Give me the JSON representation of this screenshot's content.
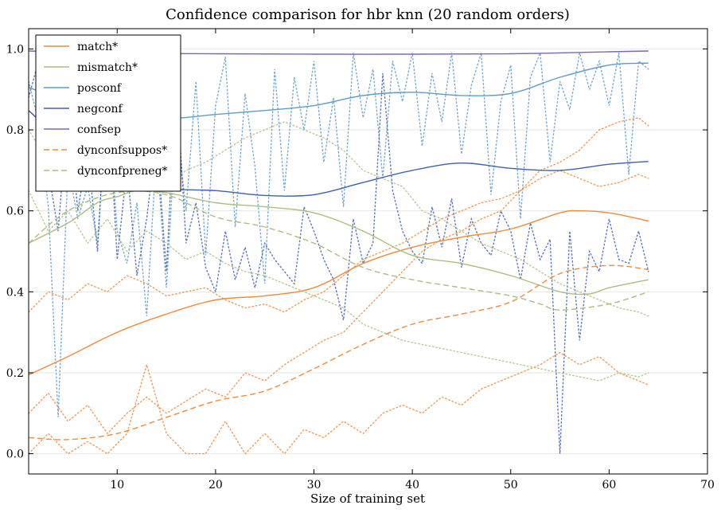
{
  "chart_data": {
    "type": "line",
    "title": "Confidence comparison for hbr knn (20 random orders)",
    "xlabel": "Size of training set",
    "ylabel": "",
    "xlim": [
      1,
      70
    ],
    "ylim": [
      -0.05,
      1.05
    ],
    "xticks": [
      10,
      20,
      30,
      40,
      50,
      60,
      70
    ],
    "yticks": [
      0.0,
      0.2,
      0.4,
      0.6,
      0.8,
      1.0
    ],
    "xtick_labels": [
      "10",
      "20",
      "30",
      "40",
      "50",
      "60",
      "70"
    ],
    "ytick_labels": [
      "0.0",
      "0.2",
      "0.4",
      "0.6",
      "0.8",
      "1.0"
    ],
    "grid": "horizontal",
    "legend_position": "top-left",
    "series": [
      {
        "name": "match*",
        "color": "#f08a3c",
        "style": "solid",
        "x": [
          1,
          5,
          10,
          15,
          20,
          25,
          30,
          35,
          40,
          45,
          50,
          55,
          57,
          60,
          64
        ],
        "values": [
          0.195,
          0.24,
          0.3,
          0.345,
          0.38,
          0.39,
          0.41,
          0.47,
          0.51,
          0.535,
          0.555,
          0.595,
          0.6,
          0.595,
          0.575
        ]
      },
      {
        "name": "mismatch*",
        "color": "#a9bf7f",
        "style": "solid",
        "x": [
          1,
          5,
          8,
          10,
          12,
          15,
          20,
          25,
          30,
          35,
          40,
          45,
          50,
          55,
          58,
          60,
          64
        ],
        "values": [
          0.52,
          0.57,
          0.62,
          0.635,
          0.65,
          0.645,
          0.62,
          0.61,
          0.595,
          0.55,
          0.49,
          0.47,
          0.44,
          0.4,
          0.395,
          0.41,
          0.43
        ]
      },
      {
        "name": "posconf",
        "color": "#5f9bc7",
        "style": "solid",
        "x": [
          1,
          5,
          10,
          15,
          20,
          25,
          30,
          35,
          40,
          45,
          50,
          55,
          60,
          64
        ],
        "values": [
          0.905,
          0.87,
          0.84,
          0.828,
          0.838,
          0.848,
          0.86,
          0.885,
          0.893,
          0.885,
          0.89,
          0.93,
          0.96,
          0.965
        ]
      },
      {
        "name": "negconf",
        "color": "#3f5fb0",
        "style": "solid",
        "x": [
          1,
          5,
          10,
          15,
          20,
          25,
          30,
          35,
          40,
          45,
          50,
          55,
          60,
          64
        ],
        "values": [
          0.848,
          0.76,
          0.68,
          0.655,
          0.65,
          0.638,
          0.64,
          0.67,
          0.7,
          0.718,
          0.705,
          0.7,
          0.715,
          0.722
        ]
      },
      {
        "name": "confsep",
        "color": "#7a66c0",
        "style": "solid",
        "x": [
          1,
          10,
          20,
          30,
          40,
          50,
          60,
          64
        ],
        "values": [
          0.995,
          0.99,
          0.988,
          0.987,
          0.987,
          0.988,
          0.993,
          0.995
        ]
      },
      {
        "name": "dynconfsuppos*",
        "color": "#f08a3c",
        "style": "dashed",
        "x": [
          1,
          5,
          10,
          15,
          20,
          25,
          30,
          35,
          40,
          45,
          50,
          55,
          60,
          64
        ],
        "values": [
          0.04,
          0.035,
          0.05,
          0.09,
          0.13,
          0.155,
          0.21,
          0.27,
          0.32,
          0.345,
          0.375,
          0.445,
          0.465,
          0.455
        ]
      },
      {
        "name": "dynconfpreneg*",
        "color": "#a9bf7f",
        "style": "dashed",
        "x": [
          1,
          5,
          10,
          15,
          20,
          25,
          30,
          35,
          40,
          45,
          50,
          53,
          55,
          60,
          64
        ],
        "values": [
          0.52,
          0.6,
          0.645,
          0.64,
          0.585,
          0.56,
          0.52,
          0.46,
          0.43,
          0.41,
          0.39,
          0.37,
          0.355,
          0.37,
          0.4
        ]
      }
    ],
    "background_traces": [
      {
        "color": "#5f9bc7",
        "x": [
          1,
          2,
          3,
          4,
          5,
          6,
          7,
          8,
          9,
          10,
          11,
          12,
          13,
          14,
          15,
          16,
          17,
          18,
          19,
          20,
          21,
          22,
          23,
          24,
          25,
          26,
          27,
          28,
          29,
          30,
          31,
          32,
          33,
          34,
          35,
          36,
          37,
          38,
          39,
          40,
          41,
          42,
          43,
          44,
          45,
          46,
          47,
          48,
          49,
          50,
          51,
          52,
          53,
          54,
          55,
          56,
          57,
          58,
          59,
          60,
          61,
          62,
          63,
          64
        ],
        "values": [
          0.92,
          0.82,
          0.61,
          0.09,
          0.71,
          0.58,
          0.66,
          0.52,
          0.88,
          0.55,
          0.47,
          0.62,
          0.34,
          0.75,
          0.41,
          0.82,
          0.6,
          0.92,
          0.49,
          0.86,
          0.98,
          0.56,
          0.89,
          0.71,
          0.42,
          0.95,
          0.65,
          0.93,
          0.8,
          0.97,
          0.72,
          0.88,
          0.61,
          0.99,
          0.83,
          0.95,
          0.68,
          0.97,
          0.87,
          0.99,
          0.76,
          0.94,
          0.82,
          0.99,
          0.74,
          0.91,
          0.99,
          0.64,
          0.87,
          0.96,
          0.58,
          0.93,
          0.99,
          0.72,
          0.92,
          0.85,
          0.99,
          0.9,
          0.97,
          0.86,
          0.99,
          0.69,
          0.97,
          0.95
        ]
      },
      {
        "color": "#3f5fb0",
        "x": [
          1,
          2,
          3,
          4,
          5,
          6,
          7,
          8,
          9,
          10,
          11,
          12,
          13,
          14,
          15,
          16,
          17,
          18,
          19,
          20,
          21,
          22,
          23,
          24,
          25,
          26,
          27,
          28,
          29,
          30,
          31,
          32,
          33,
          34,
          35,
          36,
          37,
          38,
          39,
          40,
          41,
          42,
          43,
          44,
          45,
          46,
          47,
          48,
          49,
          50,
          51,
          52,
          53,
          54,
          55,
          56,
          57,
          58,
          59,
          60,
          61,
          62,
          63,
          64
        ],
        "values": [
          0.88,
          0.97,
          0.7,
          0.55,
          0.86,
          0.6,
          0.75,
          0.5,
          0.92,
          0.48,
          0.71,
          0.44,
          0.58,
          0.78,
          0.45,
          0.93,
          0.52,
          0.62,
          0.46,
          0.4,
          0.55,
          0.43,
          0.51,
          0.41,
          0.52,
          0.48,
          0.45,
          0.42,
          0.61,
          0.55,
          0.48,
          0.43,
          0.33,
          0.58,
          0.47,
          0.52,
          0.94,
          0.65,
          0.55,
          0.5,
          0.47,
          0.61,
          0.51,
          0.63,
          0.46,
          0.58,
          0.52,
          0.49,
          0.6,
          0.55,
          0.43,
          0.57,
          0.48,
          0.53,
          0.0,
          0.55,
          0.28,
          0.5,
          0.45,
          0.58,
          0.48,
          0.47,
          0.55,
          0.45
        ]
      },
      {
        "color": "#f08a3c",
        "x": [
          1,
          3,
          5,
          7,
          9,
          11,
          13,
          15,
          17,
          19,
          21,
          23,
          25,
          27,
          29,
          31,
          33,
          35,
          37,
          39,
          41,
          43,
          45,
          47,
          49,
          51,
          53,
          55,
          57,
          59,
          61,
          63,
          64
        ],
        "values": [
          0.1,
          0.15,
          0.08,
          0.12,
          0.05,
          0.1,
          0.14,
          0.1,
          0.13,
          0.16,
          0.14,
          0.2,
          0.18,
          0.22,
          0.25,
          0.28,
          0.3,
          0.35,
          0.4,
          0.45,
          0.5,
          0.53,
          0.55,
          0.58,
          0.6,
          0.65,
          0.7,
          0.72,
          0.75,
          0.8,
          0.82,
          0.83,
          0.81
        ]
      },
      {
        "color": "#f08a3c",
        "x": [
          1,
          3,
          5,
          7,
          9,
          11,
          13,
          15,
          17,
          19,
          21,
          23,
          25,
          27,
          29,
          31,
          33,
          35,
          37,
          39,
          41,
          43,
          45,
          47,
          49,
          51,
          53,
          55,
          57,
          59,
          61,
          63,
          64
        ],
        "values": [
          0.0,
          0.05,
          0.0,
          0.03,
          0.0,
          0.05,
          0.22,
          0.05,
          0.0,
          0.0,
          0.08,
          0.0,
          0.05,
          0.0,
          0.06,
          0.04,
          0.08,
          0.05,
          0.1,
          0.12,
          0.1,
          0.14,
          0.12,
          0.16,
          0.18,
          0.2,
          0.22,
          0.25,
          0.22,
          0.24,
          0.2,
          0.18,
          0.17
        ]
      },
      {
        "color": "#f08a3c",
        "x": [
          1,
          3,
          5,
          7,
          9,
          11,
          13,
          15,
          17,
          19,
          21,
          23,
          25,
          27,
          29,
          31,
          33,
          35,
          37,
          39,
          41,
          43,
          45,
          47,
          49,
          51,
          53,
          55,
          57,
          59,
          61,
          63,
          64
        ],
        "values": [
          0.35,
          0.4,
          0.38,
          0.42,
          0.4,
          0.44,
          0.42,
          0.39,
          0.4,
          0.41,
          0.38,
          0.36,
          0.37,
          0.35,
          0.38,
          0.4,
          0.44,
          0.48,
          0.5,
          0.52,
          0.55,
          0.58,
          0.6,
          0.62,
          0.63,
          0.65,
          0.68,
          0.7,
          0.68,
          0.66,
          0.67,
          0.69,
          0.68
        ]
      },
      {
        "color": "#a9bf7f",
        "x": [
          1,
          3,
          5,
          7,
          9,
          11,
          13,
          15,
          17,
          19,
          21,
          23,
          25,
          27,
          29,
          31,
          33,
          35,
          37,
          39,
          41,
          43,
          45,
          47,
          49,
          51,
          53,
          55,
          57,
          59,
          61,
          63,
          64
        ],
        "values": [
          0.65,
          0.55,
          0.6,
          0.52,
          0.58,
          0.5,
          0.55,
          0.52,
          0.48,
          0.5,
          0.47,
          0.45,
          0.44,
          0.42,
          0.4,
          0.38,
          0.36,
          0.32,
          0.3,
          0.28,
          0.27,
          0.26,
          0.25,
          0.24,
          0.23,
          0.22,
          0.21,
          0.2,
          0.19,
          0.18,
          0.2,
          0.19,
          0.2
        ]
      },
      {
        "color": "#a9bf7f",
        "x": [
          1,
          3,
          5,
          7,
          9,
          11,
          13,
          15,
          17,
          19,
          21,
          23,
          25,
          27,
          29,
          31,
          33,
          35,
          37,
          39,
          41,
          43,
          45,
          47,
          49,
          51,
          53,
          55,
          57,
          59,
          61,
          63,
          64
        ],
        "values": [
          0.8,
          0.72,
          0.75,
          0.68,
          0.72,
          0.7,
          0.68,
          0.66,
          0.7,
          0.72,
          0.75,
          0.78,
          0.8,
          0.82,
          0.8,
          0.78,
          0.75,
          0.7,
          0.68,
          0.66,
          0.6,
          0.58,
          0.55,
          0.52,
          0.5,
          0.48,
          0.45,
          0.42,
          0.4,
          0.38,
          0.36,
          0.35,
          0.34
        ]
      }
    ]
  }
}
